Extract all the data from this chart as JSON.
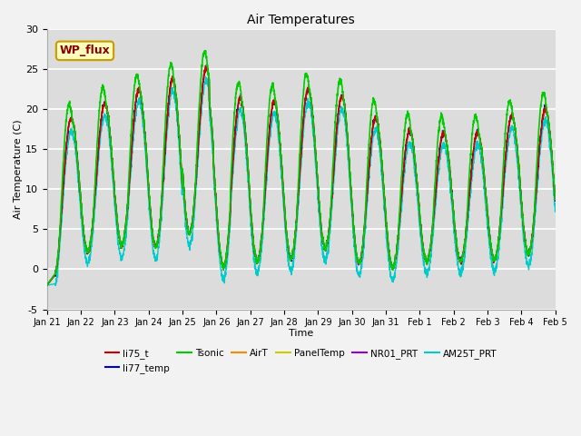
{
  "title": "Air Temperatures",
  "xlabel": "Time",
  "ylabel": "Air Temperature (C)",
  "ylim": [
    -5,
    30
  ],
  "xlim": [
    0,
    360
  ],
  "x_tick_labels": [
    "Jan 21",
    "Jan 22",
    "Jan 23",
    "Jan 24",
    "Jan 25",
    "Jan 26",
    "Jan 27",
    "Jan 28",
    "Jan 29",
    "Jan 30",
    "Jan 31",
    "Feb 1",
    "Feb 2",
    "Feb 3",
    "Feb 4",
    "Feb 5"
  ],
  "x_tick_positions": [
    0,
    24,
    48,
    72,
    96,
    120,
    144,
    168,
    192,
    216,
    240,
    264,
    288,
    312,
    336,
    360
  ],
  "y_ticks": [
    -5,
    0,
    5,
    10,
    15,
    20,
    25,
    30
  ],
  "fig_bg": "#f2f2f2",
  "plot_bg": "#dcdcdc",
  "grid_color": "#ffffff",
  "legend_entries": [
    "li75_t",
    "li77_temp",
    "Tsonic",
    "AirT",
    "PanelTemp",
    "NR01_PRT",
    "AM25T_PRT"
  ],
  "line_colors": {
    "li75_t": "#cc0000",
    "li77_temp": "#0000cc",
    "Tsonic": "#00cc00",
    "AirT": "#ff8800",
    "PanelTemp": "#cccc00",
    "NR01_PRT": "#9900cc",
    "AM25T_PRT": "#00cccc"
  },
  "annotation_text": "WP_flux",
  "annotation_color": "#880000",
  "annotation_bg": "#ffffbb",
  "annotation_edge": "#cc9900"
}
